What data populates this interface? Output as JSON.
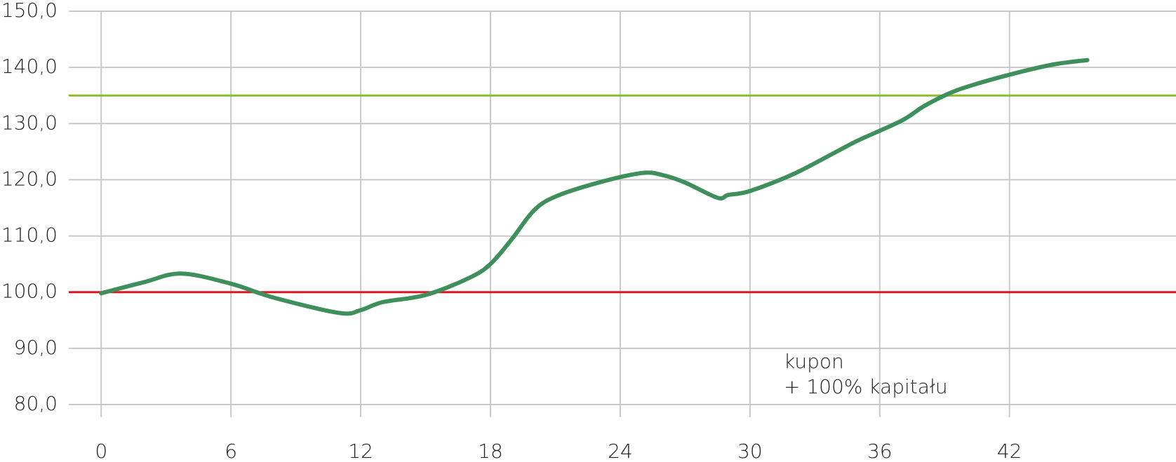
{
  "chart_data": {
    "type": "line",
    "x": [
      0,
      2,
      3.7,
      6,
      8,
      11,
      12,
      13,
      15,
      17,
      18,
      19,
      20,
      21,
      23,
      25,
      26,
      27,
      28.5,
      29,
      30,
      32,
      34,
      35,
      37,
      38,
      39,
      40,
      42,
      44,
      45.6
    ],
    "series": [
      {
        "color": "#3f8f5c",
        "values": [
          99.8,
          101.8,
          103.3,
          101.5,
          99,
          96.3,
          96.8,
          98.2,
          99.5,
          102.5,
          105,
          109.5,
          114.5,
          117,
          119.5,
          121.2,
          120.8,
          119.5,
          116.8,
          117.3,
          118,
          121,
          125,
          127,
          130.5,
          133,
          135,
          136.5,
          138.7,
          140.5,
          141.3
        ]
      }
    ],
    "hlines": [
      {
        "value": 100,
        "color": "#e0141e"
      },
      {
        "value": 135,
        "color": "#8dbb2f"
      }
    ],
    "xlim": [
      -1.5,
      49.7
    ],
    "ylim": [
      80,
      150
    ],
    "xticks": [
      0,
      6,
      12,
      18,
      24,
      30,
      36,
      42
    ],
    "yticks": [
      {
        "value": 80,
        "label": "80,0"
      },
      {
        "value": 90,
        "label": "90,0"
      },
      {
        "value": 100,
        "label": "100,0"
      },
      {
        "value": 110,
        "label": "110,0"
      },
      {
        "value": 120,
        "label": "120,0"
      },
      {
        "value": 130,
        "label": "130,0"
      },
      {
        "value": 140,
        "label": "140,0"
      },
      {
        "value": 150,
        "label": "150,0"
      }
    ],
    "grid": true,
    "annotation": [
      "kupon",
      "+ 100% kapitału"
    ]
  }
}
